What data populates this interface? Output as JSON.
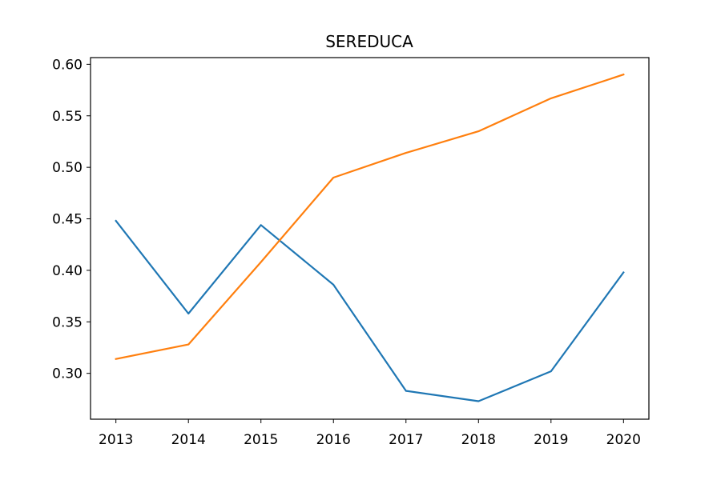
{
  "chart_data": {
    "type": "line",
    "title": "SEREDUCA",
    "xlabel": "",
    "ylabel": "",
    "x": [
      2013,
      2014,
      2015,
      2016,
      2017,
      2018,
      2019,
      2020
    ],
    "x_tick_labels": [
      "2013",
      "2014",
      "2015",
      "2016",
      "2017",
      "2018",
      "2019",
      "2020"
    ],
    "y_ticks": [
      0.3,
      0.35,
      0.4,
      0.45,
      0.5,
      0.55,
      0.6
    ],
    "y_tick_labels": [
      "0.30",
      "0.35",
      "0.40",
      "0.45",
      "0.50",
      "0.55",
      "0.60"
    ],
    "ylim": [
      0.2555,
      0.6065
    ],
    "grid": false,
    "series": [
      {
        "color": "#1f77b4",
        "values": [
          0.448,
          0.358,
          0.444,
          0.386,
          0.283,
          0.273,
          0.302,
          0.398
        ]
      },
      {
        "color": "#ff7f0e",
        "values": [
          0.314,
          0.328,
          0.408,
          0.49,
          0.514,
          0.535,
          0.567,
          0.59
        ]
      }
    ]
  }
}
